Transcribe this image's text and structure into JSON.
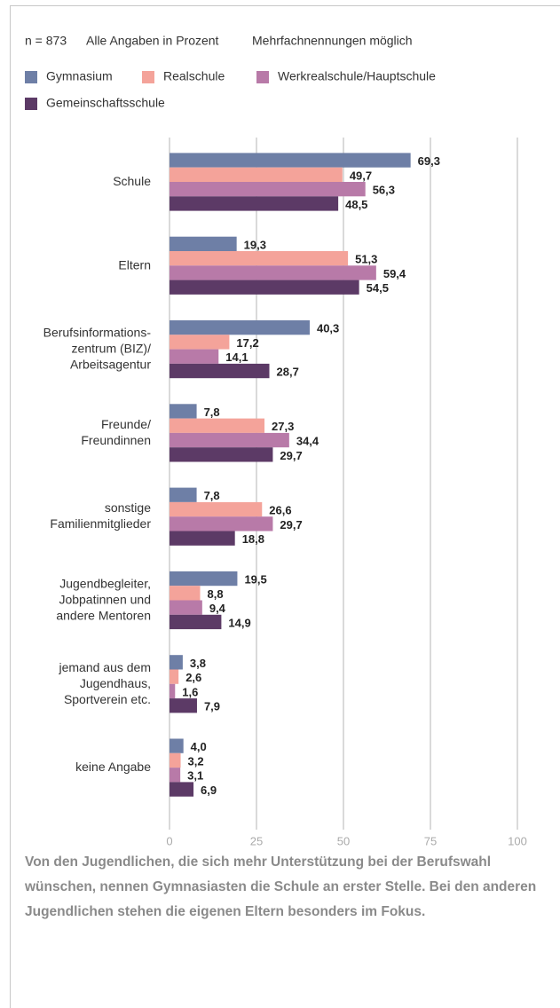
{
  "chart_data": {
    "type": "bar",
    "orientation": "horizontal",
    "notes": [
      "n = 873",
      "Alle Angaben in Prozent",
      "Mehrfachnennungen möglich"
    ],
    "categories": [
      "Schule",
      "Eltern",
      "Berufsinformations-\nzentrum (BIZ)/\nArbeitsagentur",
      "Freunde/\nFreundinnen",
      "sonstige\nFamilienmitglieder",
      "Jugendbegleiter,\nJobpatinnen und\nandere Mentoren",
      "jemand aus dem\nJugendhaus,\nSportverein etc.",
      "keine Angabe"
    ],
    "series": [
      {
        "name": "Gymnasium",
        "color": "#6e7fa6",
        "values": [
          69.3,
          19.3,
          40.3,
          7.8,
          7.8,
          19.5,
          3.8,
          4.0
        ],
        "value_labels": [
          "69,3",
          "19,3",
          "40,3",
          "7,8",
          "7,8",
          "19,5",
          "3,8",
          "4,0"
        ]
      },
      {
        "name": "Realschule",
        "color": "#f4a39a",
        "values": [
          49.7,
          51.3,
          17.2,
          27.3,
          26.6,
          8.8,
          2.6,
          3.2
        ],
        "value_labels": [
          "49,7",
          "51,3",
          "17,2",
          "27,3",
          "26,6",
          "8,8",
          "2,6",
          "3,2"
        ]
      },
      {
        "name": "Werkrealschule/Hauptschule",
        "color": "#b87aa8",
        "values": [
          56.3,
          59.4,
          14.1,
          34.4,
          29.7,
          9.4,
          1.6,
          3.1
        ],
        "value_labels": [
          "56,3",
          "59,4",
          "14,1",
          "34,4",
          "29,7",
          "9,4",
          "1,6",
          "3,1"
        ]
      },
      {
        "name": "Gemeinschaftsschule",
        "color": "#5c3a66",
        "values": [
          48.5,
          54.5,
          28.7,
          29.7,
          18.8,
          14.9,
          7.9,
          6.9
        ],
        "value_labels": [
          "48,5",
          "54,5",
          "28,7",
          "29,7",
          "18,8",
          "14,9",
          "7,9",
          "6,9"
        ]
      }
    ],
    "xlim": [
      0,
      100
    ],
    "xticks": [
      0,
      25,
      50,
      75,
      100
    ],
    "grid": true,
    "caption": "Von den Jugendlichen, die sich mehr Unterstützung bei der Berufswahl wünschen, nennen Gymnasiasten die Schule an erster Stelle. Bei den anderen Jugendlichen stehen die eigenen Eltern besonders im Fokus."
  }
}
